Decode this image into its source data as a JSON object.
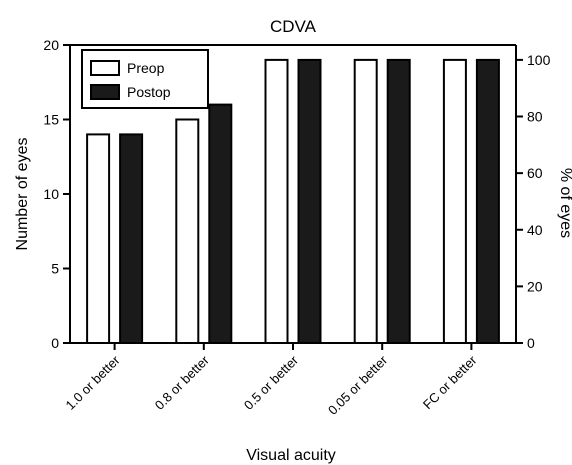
{
  "chart_data": {
    "type": "bar",
    "title": "CDVA",
    "xlabel": "Visual acuity",
    "ylabel": "Number of eyes",
    "y2label": "% of eyes",
    "categories": [
      "1.0 or better",
      "0.8 or better",
      "0.5 or better",
      "0.05 or better",
      "FC or better"
    ],
    "series": [
      {
        "name": "Preop",
        "values": [
          14,
          15,
          19,
          19,
          19
        ],
        "fill": "#ffffff"
      },
      {
        "name": "Postop",
        "values": [
          14,
          16,
          19,
          19,
          19
        ],
        "fill": "#1a1a1a"
      }
    ],
    "ylim": [
      0,
      20
    ],
    "yticks": [
      0,
      5,
      10,
      15,
      20
    ],
    "y2lim": [
      0,
      105.26
    ],
    "y2ticks": [
      0,
      20,
      40,
      60,
      80,
      100
    ],
    "grid": false,
    "legend": "top-left"
  }
}
